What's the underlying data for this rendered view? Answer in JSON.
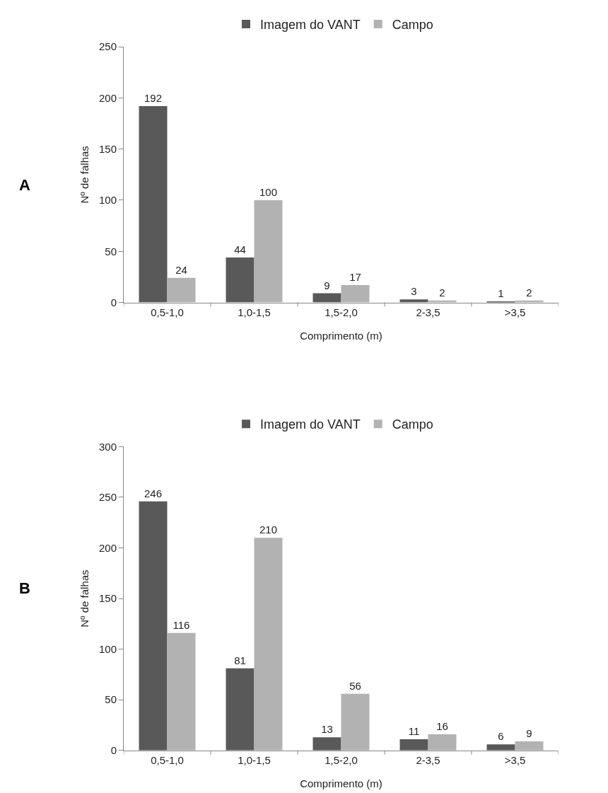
{
  "chart_data": [
    {
      "type": "bar",
      "annotations": [
        "A"
      ],
      "categories": [
        "0,5-1,0",
        "1,0-1,5",
        "1,5-2,0",
        "2-3,5",
        ">3,5"
      ],
      "xlabel": "Comprimento (m)",
      "ylabel": "Nº de falhas",
      "ylim": [
        0,
        250
      ],
      "yticks": [
        0,
        50,
        100,
        150,
        200,
        250
      ],
      "legend": "top",
      "data_labels": true,
      "series": [
        {
          "name": "Imagem do VANT",
          "color": "#595959",
          "values": [
            192,
            44,
            9,
            3,
            1
          ]
        },
        {
          "name": "Campo",
          "color": "#b2b2b2",
          "values": [
            24,
            100,
            17,
            2,
            2
          ]
        }
      ]
    },
    {
      "type": "bar",
      "annotations": [
        "B"
      ],
      "categories": [
        "0,5-1,0",
        "1,0-1,5",
        "1,5-2,0",
        "2-3,5",
        ">3,5"
      ],
      "xlabel": "Comprimento (m)",
      "ylabel": "Nº de falhas",
      "ylim": [
        0,
        300
      ],
      "yticks": [
        0,
        50,
        100,
        150,
        200,
        250,
        300
      ],
      "legend": "top",
      "data_labels": true,
      "series": [
        {
          "name": "Imagem do VANT",
          "color": "#595959",
          "values": [
            246,
            81,
            13,
            11,
            6
          ]
        },
        {
          "name": "Campo",
          "color": "#b2b2b2",
          "values": [
            116,
            210,
            56,
            16,
            9
          ]
        }
      ]
    }
  ]
}
